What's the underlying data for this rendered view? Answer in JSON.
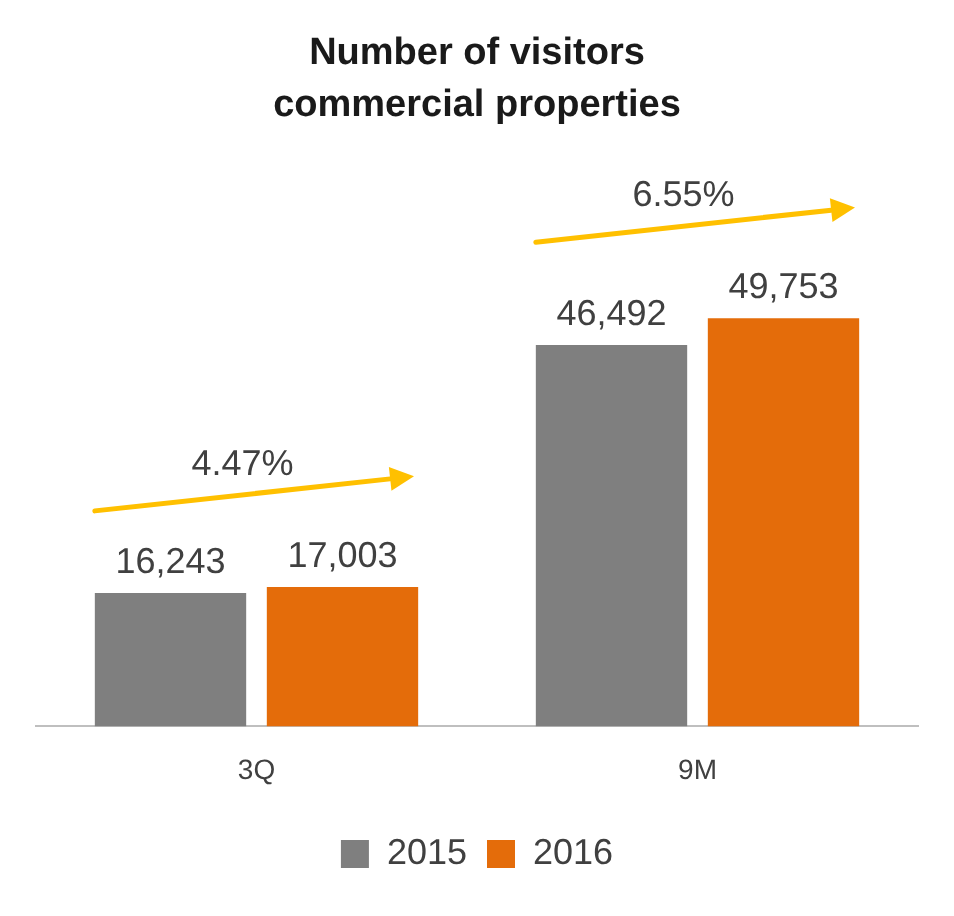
{
  "chart_data": {
    "type": "bar",
    "title": "Number of visitors commercial properties",
    "categories": [
      "3Q",
      "9M"
    ],
    "series": [
      {
        "name": "2015",
        "color": "#7f7f7f",
        "values": [
          16243,
          46492
        ],
        "value_labels": [
          "16,243",
          "46,492"
        ]
      },
      {
        "name": "2016",
        "color": "#e46c0a",
        "values": [
          17003,
          49753
        ],
        "value_labels": [
          "17,003",
          "49,753"
        ]
      }
    ],
    "grid": false,
    "legend": "bottom",
    "annotations": [
      "4.47%",
      "6.55%"
    ]
  }
}
